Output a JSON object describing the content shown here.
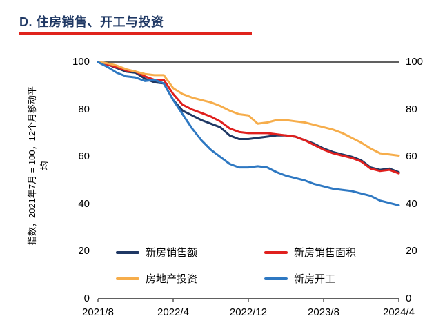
{
  "title": {
    "text": "D. 住房销售、开工与投资",
    "color": "#1f3864",
    "rule_color": "#e0231c"
  },
  "y_axis": {
    "label_line1": "指数，2021年7月 = 100，12个月移动平",
    "label_line2": "均",
    "ticks": [
      100,
      80,
      60,
      40,
      20,
      0
    ]
  },
  "x_axis": {
    "tick_labels": [
      "2021/8",
      "2022/4",
      "2022/12",
      "2023/8",
      "2024/4"
    ],
    "tick_indices": [
      0,
      8,
      16,
      24,
      32
    ]
  },
  "chart_data": {
    "type": "line",
    "title": "D. 住房销售、开工与投资",
    "ylabel": "指数，2021年7月 = 100，12个月移动平均",
    "ylim": [
      0,
      100
    ],
    "y_ticks": [
      0,
      20,
      40,
      60,
      80,
      100
    ],
    "x_start": "2021/8",
    "x_end": "2024/4",
    "x_unit": "month",
    "x_count": 33,
    "x_tick_labels": [
      "2021/8",
      "2022/4",
      "2022/12",
      "2023/8",
      "2024/4"
    ],
    "legend_position": "bottom-inside",
    "grid": false,
    "series": [
      {
        "id": "new-home-sales-value",
        "name": "新房销售额",
        "color": "#1f3864",
        "values": [
          100,
          99,
          97.5,
          96,
          95.5,
          93,
          91.5,
          91,
          84,
          79.5,
          77.5,
          75.5,
          74,
          72.5,
          69,
          67.5,
          67.5,
          68,
          68.5,
          69,
          69,
          68.5,
          67,
          65.5,
          63.5,
          62,
          61,
          60,
          58.5,
          55.5,
          54.5,
          55,
          53.5
        ]
      },
      {
        "id": "new-home-sales-area",
        "name": "新房销售面积",
        "color": "#e0201e",
        "values": [
          100,
          99,
          97.8,
          96.5,
          96,
          94,
          92.5,
          92.5,
          86.5,
          82,
          80,
          78.5,
          77,
          75,
          72,
          70.5,
          70,
          70,
          70,
          69.5,
          69,
          68.5,
          67,
          65,
          63,
          61.5,
          60.5,
          59.5,
          58,
          55,
          54,
          54.5,
          53
        ]
      },
      {
        "id": "real-estate-investment",
        "name": "房地产投资",
        "color": "#f6ad4b",
        "values": [
          100,
          99.5,
          98.5,
          97,
          96,
          95,
          94.5,
          94.5,
          89,
          86.5,
          85,
          84,
          83,
          81.5,
          79.5,
          78,
          77.5,
          74,
          74.5,
          75.5,
          75.5,
          75,
          74.5,
          73.5,
          72.5,
          71.5,
          70,
          68,
          66,
          63.5,
          61.5,
          61,
          60.5
        ]
      },
      {
        "id": "new-home-starts",
        "name": "新房开工",
        "color": "#2e78c2",
        "values": [
          100,
          98,
          95.5,
          94,
          93.5,
          92,
          92.5,
          91,
          84,
          78,
          72,
          67,
          63,
          60,
          57,
          55.5,
          55.5,
          56,
          55.5,
          53.5,
          52,
          51,
          50,
          48.5,
          47.5,
          46.5,
          46,
          45.5,
          44.5,
          43.5,
          41.5,
          40.5,
          39.5
        ]
      }
    ]
  }
}
